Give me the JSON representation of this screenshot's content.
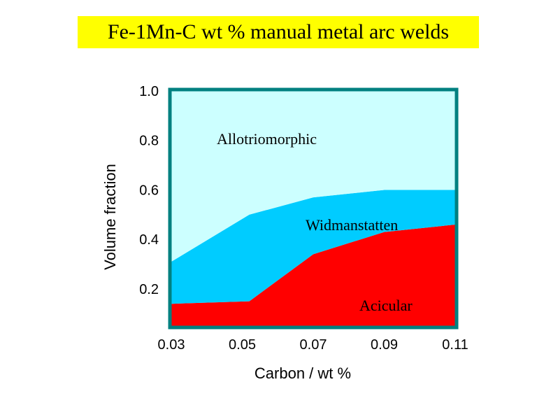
{
  "chart_data": {
    "type": "area",
    "title": "Fe-1Mn-C wt % manual metal arc welds",
    "xlabel": "Carbon / wt %",
    "ylabel": "Volume fraction",
    "xlim": [
      0.03,
      0.11
    ],
    "ylim": [
      0.05,
      1.0
    ],
    "x_ticks": [
      "0.03",
      "0.05",
      "0.07",
      "0.09",
      "0.11"
    ],
    "y_ticks": [
      "0.2",
      "0.4",
      "0.6",
      "0.8",
      "1.0"
    ],
    "x": [
      0.03,
      0.052,
      0.07,
      0.09,
      0.11
    ],
    "stacked": true,
    "series": [
      {
        "name": "Acicular",
        "values": [
          0.14,
          0.15,
          0.34,
          0.43,
          0.46
        ],
        "color": "#ff0000"
      },
      {
        "name": "Widmanstatten",
        "values": [
          0.17,
          0.35,
          0.23,
          0.17,
          0.14
        ],
        "color": "#00ccff"
      },
      {
        "name": "Allotriomorphic",
        "values": [
          0.69,
          0.5,
          0.43,
          0.4,
          0.4
        ],
        "color": "#ccffff"
      }
    ],
    "frame_color": "#008080",
    "grid": false
  }
}
